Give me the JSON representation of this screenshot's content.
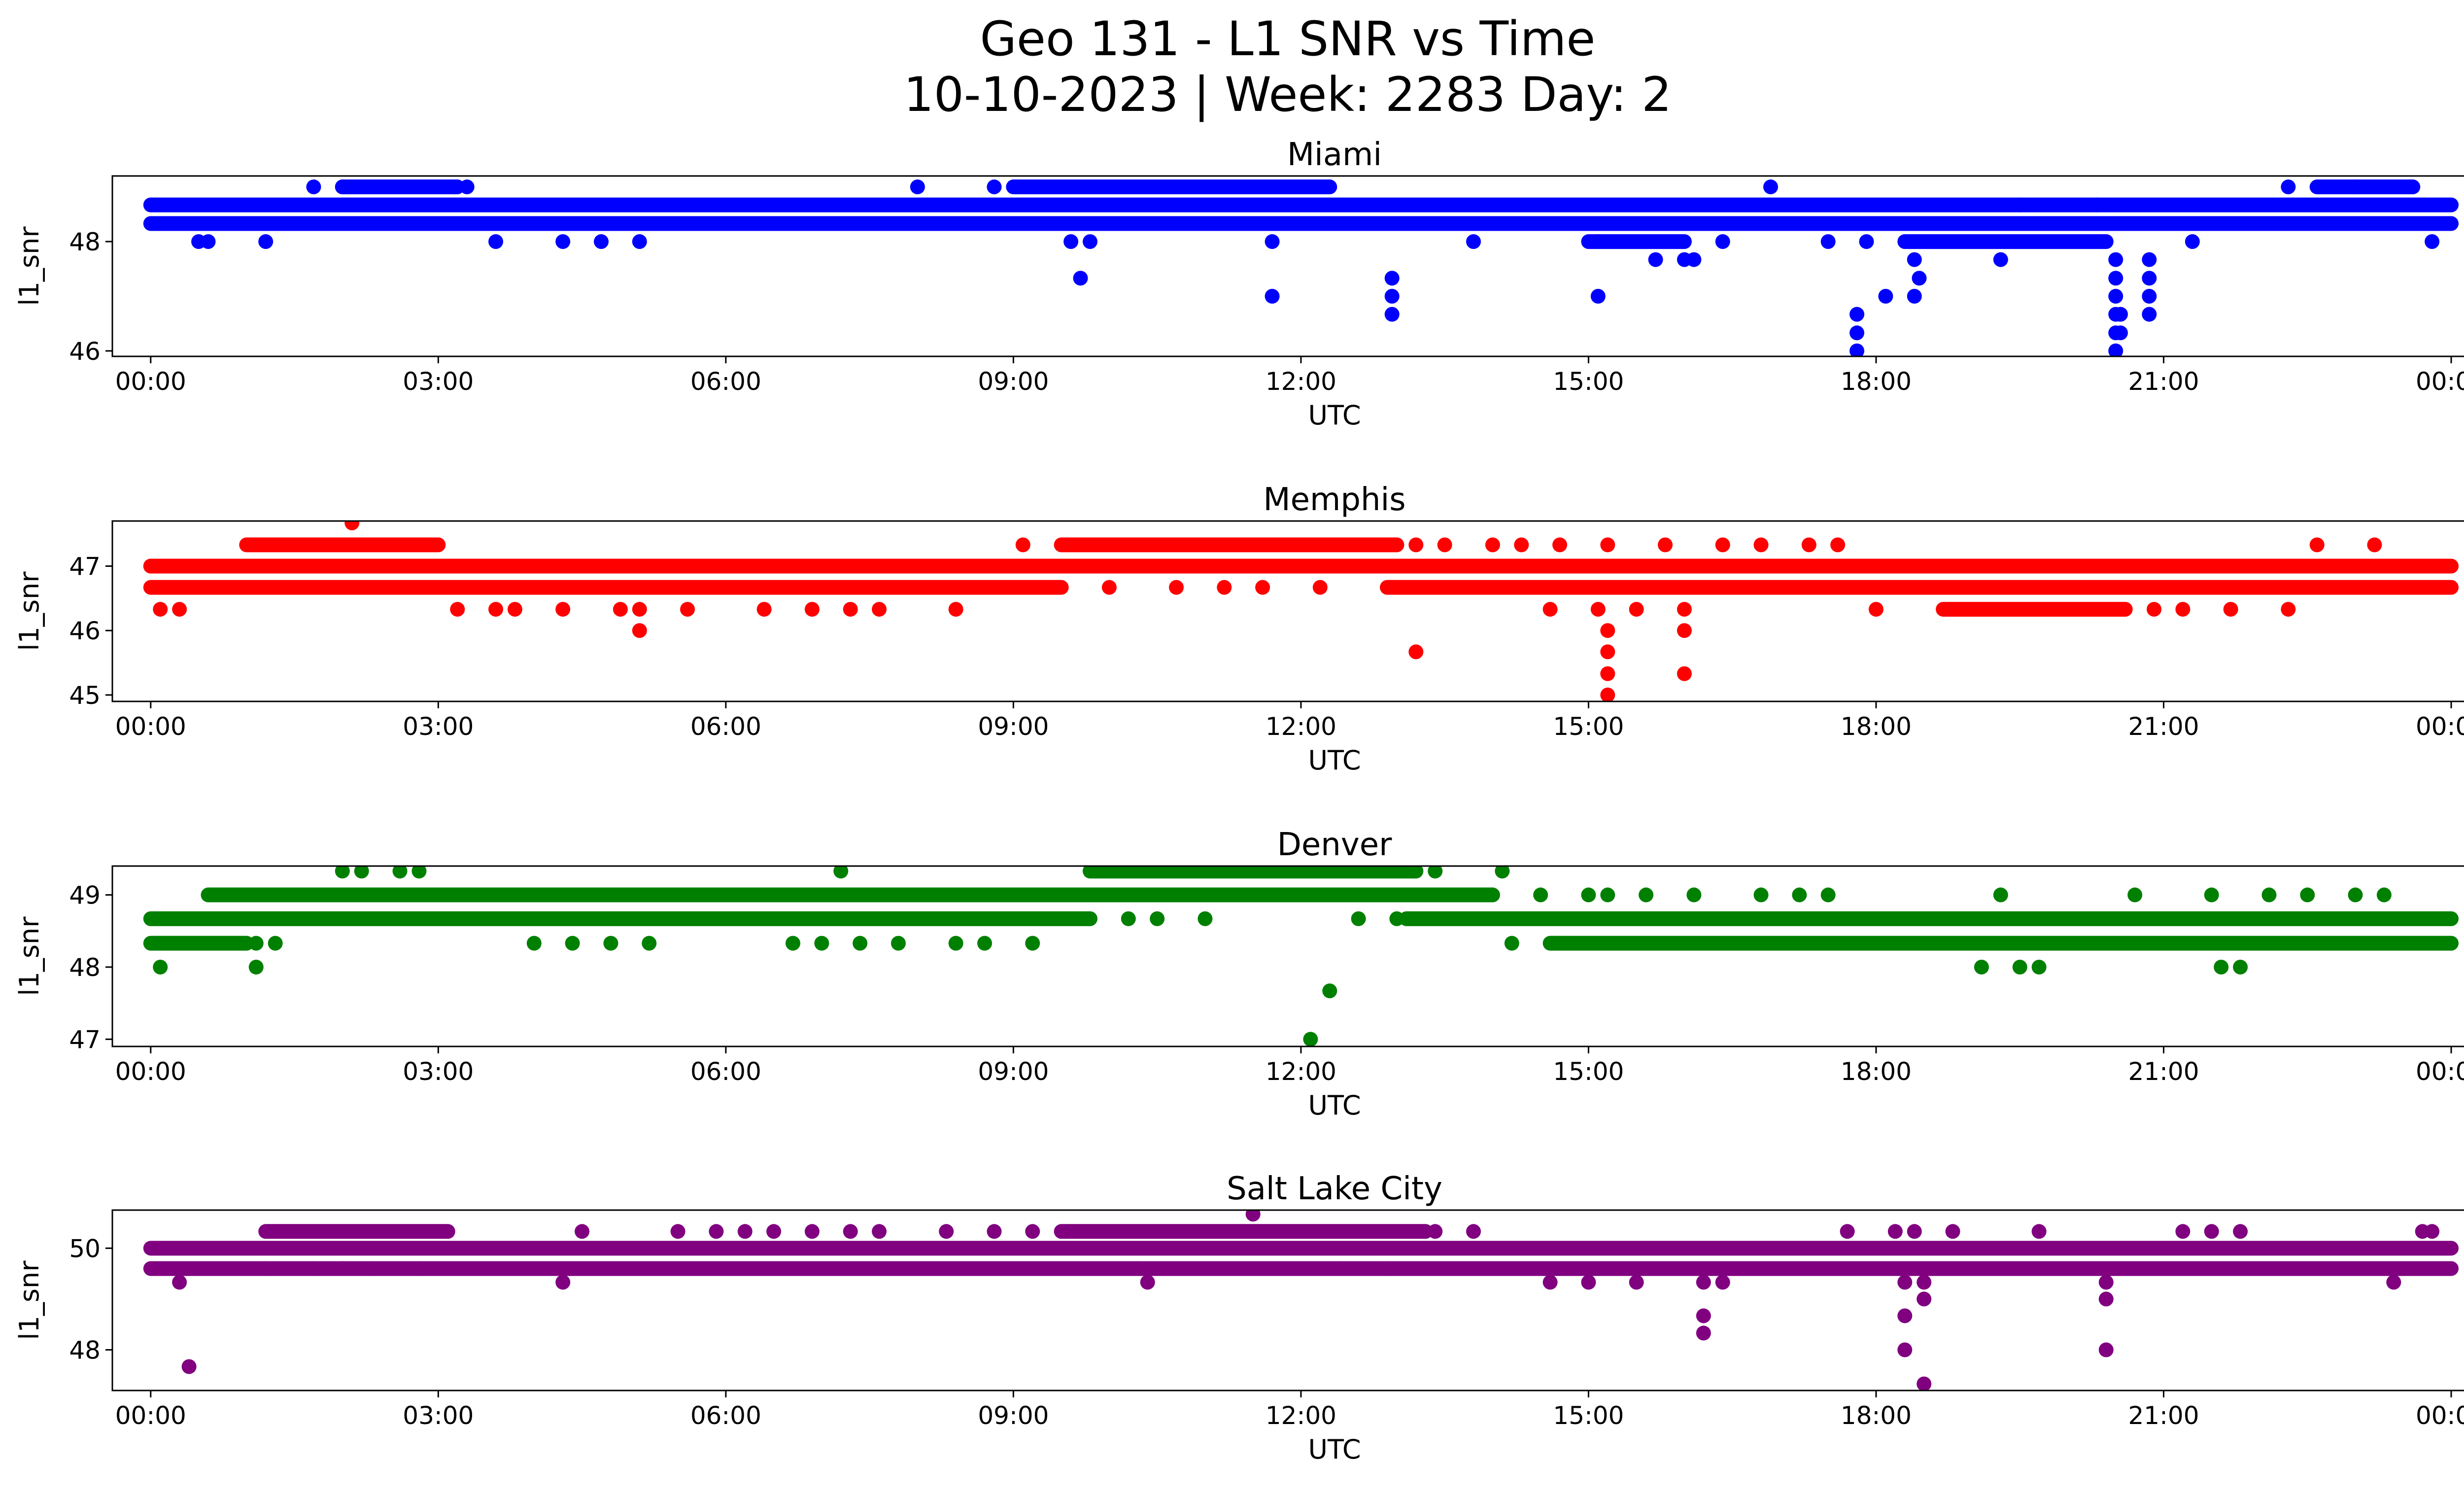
{
  "figure": {
    "title_line1": "Geo 131 - L1 SNR vs Time",
    "title_line2": "10-10-2023 | Week: 2283 Day: 2"
  },
  "chart_data": [
    {
      "type": "scatter",
      "title": "Miami",
      "xlabel": "UTC",
      "ylabel": "l1_snr",
      "color": "#0000ff",
      "x_unit": "hours UTC",
      "xlim": [
        -0.4,
        25.1
      ],
      "ylim": [
        45.9,
        49.2
      ],
      "xticks": [
        "00:00",
        "03:00",
        "06:00",
        "09:00",
        "12:00",
        "15:00",
        "18:00",
        "21:00",
        "00:00"
      ],
      "yticks": [
        46,
        48
      ],
      "bands": [
        {
          "y": 48.67,
          "from": 0.0,
          "to": 24.0
        },
        {
          "y": 48.33,
          "from": 0.0,
          "to": 15.8
        },
        {
          "y": 48.33,
          "from": 15.8,
          "to": 24.0
        },
        {
          "y": 49.0,
          "from": 2.0,
          "to": 3.2
        },
        {
          "y": 49.0,
          "from": 9.0,
          "to": 12.3
        },
        {
          "y": 49.0,
          "from": 22.6,
          "to": 23.6
        },
        {
          "y": 48.0,
          "from": 15.0,
          "to": 16.0
        },
        {
          "y": 48.0,
          "from": 18.3,
          "to": 20.4
        }
      ],
      "points": [
        [
          1.7,
          49.0
        ],
        [
          2.0,
          49.0
        ],
        [
          3.3,
          49.0
        ],
        [
          8.0,
          49.0
        ],
        [
          8.8,
          49.0
        ],
        [
          16.9,
          49.0
        ],
        [
          22.3,
          49.0
        ],
        [
          23.0,
          49.0
        ],
        [
          0.05,
          48.33
        ],
        [
          0.5,
          48.0
        ],
        [
          0.6,
          48.0
        ],
        [
          1.2,
          48.0
        ],
        [
          3.6,
          48.0
        ],
        [
          4.3,
          48.0
        ],
        [
          4.7,
          48.0
        ],
        [
          5.1,
          48.0
        ],
        [
          9.6,
          48.0
        ],
        [
          9.8,
          48.0
        ],
        [
          11.7,
          48.0
        ],
        [
          13.8,
          48.0
        ],
        [
          15.1,
          48.0
        ],
        [
          16.4,
          48.0
        ],
        [
          17.5,
          48.0
        ],
        [
          17.9,
          48.0
        ],
        [
          21.3,
          48.0
        ],
        [
          23.8,
          48.0
        ],
        [
          9.7,
          47.33
        ],
        [
          11.7,
          47.0
        ],
        [
          12.95,
          47.33
        ],
        [
          12.95,
          47.0
        ],
        [
          12.95,
          46.67
        ],
        [
          15.1,
          47.0
        ],
        [
          15.7,
          47.67
        ],
        [
          16.0,
          47.67
        ],
        [
          16.1,
          47.67
        ],
        [
          19.3,
          47.67
        ],
        [
          17.8,
          46.67
        ],
        [
          17.8,
          46.33
        ],
        [
          17.8,
          46.0
        ],
        [
          18.1,
          47.0
        ],
        [
          18.4,
          47.67
        ],
        [
          18.45,
          47.33
        ],
        [
          18.4,
          47.0
        ],
        [
          20.5,
          47.67
        ],
        [
          20.5,
          47.33
        ],
        [
          20.5,
          47.0
        ],
        [
          20.5,
          46.67
        ],
        [
          20.5,
          46.33
        ],
        [
          20.5,
          46.0
        ],
        [
          20.55,
          46.67
        ],
        [
          20.55,
          46.33
        ],
        [
          20.85,
          47.67
        ],
        [
          20.85,
          47.33
        ],
        [
          20.85,
          47.0
        ],
        [
          20.85,
          46.67
        ],
        [
          10.3,
          48.33
        ],
        [
          9.5,
          48.33
        ],
        [
          19.5,
          48.67
        ],
        [
          20.3,
          48.67
        ]
      ]
    },
    {
      "type": "scatter",
      "title": "Memphis",
      "xlabel": "UTC",
      "ylabel": "l1_snr",
      "color": "#ff0000",
      "x_unit": "hours UTC",
      "xlim": [
        -0.4,
        25.1
      ],
      "ylim": [
        44.9,
        47.7
      ],
      "xticks": [
        "00:00",
        "03:00",
        "06:00",
        "09:00",
        "12:00",
        "15:00",
        "18:00",
        "21:00",
        "00:00"
      ],
      "yticks": [
        45,
        46,
        47
      ],
      "bands": [
        {
          "y": 47.0,
          "from": 0.0,
          "to": 24.0
        },
        {
          "y": 46.67,
          "from": 0.0,
          "to": 9.5
        },
        {
          "y": 46.67,
          "from": 12.9,
          "to": 24.0
        },
        {
          "y": 46.33,
          "from": 18.7,
          "to": 20.6
        },
        {
          "y": 47.33,
          "from": 1.0,
          "to": 3.0
        },
        {
          "y": 47.33,
          "from": 9.5,
          "to": 13.0
        }
      ],
      "points": [
        [
          2.1,
          47.67
        ],
        [
          0.0,
          47.0
        ],
        [
          0.1,
          46.33
        ],
        [
          0.3,
          46.33
        ],
        [
          3.2,
          46.33
        ],
        [
          3.6,
          46.33
        ],
        [
          3.8,
          46.33
        ],
        [
          4.3,
          46.33
        ],
        [
          4.9,
          46.33
        ],
        [
          5.1,
          46.33
        ],
        [
          5.6,
          46.33
        ],
        [
          6.4,
          46.33
        ],
        [
          6.9,
          46.33
        ],
        [
          7.3,
          46.33
        ],
        [
          7.6,
          46.33
        ],
        [
          8.4,
          46.33
        ],
        [
          5.1,
          46.0
        ],
        [
          9.1,
          47.33
        ],
        [
          13.2,
          47.33
        ],
        [
          13.5,
          47.33
        ],
        [
          14.0,
          47.33
        ],
        [
          14.3,
          47.33
        ],
        [
          14.7,
          47.33
        ],
        [
          15.2,
          47.33
        ],
        [
          15.8,
          47.33
        ],
        [
          16.4,
          47.33
        ],
        [
          16.8,
          47.33
        ],
        [
          17.3,
          47.33
        ],
        [
          17.6,
          47.33
        ],
        [
          22.6,
          47.33
        ],
        [
          23.2,
          47.33
        ],
        [
          10.0,
          46.67
        ],
        [
          10.7,
          46.67
        ],
        [
          11.2,
          46.67
        ],
        [
          11.6,
          46.67
        ],
        [
          12.2,
          46.67
        ],
        [
          13.2,
          45.67
        ],
        [
          14.6,
          46.33
        ],
        [
          15.1,
          46.33
        ],
        [
          15.5,
          46.33
        ],
        [
          16.0,
          46.33
        ],
        [
          18.0,
          46.33
        ],
        [
          15.2,
          46.0
        ],
        [
          15.2,
          45.67
        ],
        [
          15.2,
          45.33
        ],
        [
          15.2,
          45.0
        ],
        [
          16.0,
          46.0
        ],
        [
          16.0,
          45.33
        ],
        [
          20.9,
          46.33
        ],
        [
          21.2,
          46.33
        ],
        [
          21.7,
          46.33
        ],
        [
          22.3,
          46.33
        ],
        [
          19.4,
          47.0
        ],
        [
          20.0,
          47.0
        ]
      ]
    },
    {
      "type": "scatter",
      "title": "Denver",
      "xlabel": "UTC",
      "ylabel": "l1_snr",
      "color": "#008000",
      "x_unit": "hours UTC",
      "xlim": [
        -0.4,
        25.1
      ],
      "ylim": [
        46.9,
        49.4
      ],
      "xticks": [
        "00:00",
        "03:00",
        "06:00",
        "09:00",
        "12:00",
        "15:00",
        "18:00",
        "21:00",
        "00:00"
      ],
      "yticks": [
        47,
        48,
        49
      ],
      "bands": [
        {
          "y": 48.67,
          "from": 0.0,
          "to": 9.8
        },
        {
          "y": 48.67,
          "from": 13.1,
          "to": 24.0
        },
        {
          "y": 48.33,
          "from": 0.0,
          "to": 1.0
        },
        {
          "y": 48.33,
          "from": 14.6,
          "to": 24.0
        },
        {
          "y": 49.0,
          "from": 0.6,
          "to": 14.0
        },
        {
          "y": 49.33,
          "from": 9.8,
          "to": 13.2
        }
      ],
      "points": [
        [
          0.1,
          48.0
        ],
        [
          1.1,
          48.0
        ],
        [
          1.1,
          48.33
        ],
        [
          1.3,
          48.33
        ],
        [
          2.0,
          49.33
        ],
        [
          2.2,
          49.33
        ],
        [
          2.6,
          49.33
        ],
        [
          2.8,
          49.33
        ],
        [
          7.2,
          49.33
        ],
        [
          4.0,
          48.33
        ],
        [
          4.4,
          48.33
        ],
        [
          4.8,
          48.33
        ],
        [
          5.2,
          48.33
        ],
        [
          6.7,
          48.33
        ],
        [
          7.0,
          48.33
        ],
        [
          7.4,
          48.33
        ],
        [
          7.8,
          48.33
        ],
        [
          8.4,
          48.33
        ],
        [
          8.7,
          48.33
        ],
        [
          9.2,
          48.33
        ],
        [
          10.2,
          48.67
        ],
        [
          10.5,
          48.67
        ],
        [
          11.0,
          48.67
        ],
        [
          12.1,
          47.0
        ],
        [
          12.3,
          47.67
        ],
        [
          12.6,
          48.67
        ],
        [
          13.0,
          48.67
        ],
        [
          13.4,
          49.33
        ],
        [
          14.1,
          49.33
        ],
        [
          14.2,
          48.33
        ],
        [
          14.5,
          49.0
        ],
        [
          15.0,
          49.0
        ],
        [
          15.2,
          49.0
        ],
        [
          15.6,
          49.0
        ],
        [
          16.1,
          49.0
        ],
        [
          16.8,
          49.0
        ],
        [
          17.2,
          49.0
        ],
        [
          17.5,
          49.0
        ],
        [
          19.1,
          48.0
        ],
        [
          19.5,
          48.0
        ],
        [
          19.7,
          48.0
        ],
        [
          21.6,
          48.0
        ],
        [
          21.8,
          48.0
        ],
        [
          19.3,
          49.0
        ],
        [
          20.7,
          49.0
        ],
        [
          21.5,
          49.0
        ],
        [
          22.1,
          49.0
        ],
        [
          22.5,
          49.0
        ],
        [
          23.0,
          49.0
        ],
        [
          23.3,
          49.0
        ]
      ]
    },
    {
      "type": "scatter",
      "title": "Salt Lake City",
      "xlabel": "UTC",
      "ylabel": "l1_snr",
      "color": "#800080",
      "x_unit": "hours UTC",
      "xlim": [
        -0.4,
        25.1
      ],
      "ylim": [
        47.2,
        50.75
      ],
      "xticks": [
        "00:00",
        "03:00",
        "06:00",
        "09:00",
        "12:00",
        "15:00",
        "18:00",
        "21:00",
        "00:00"
      ],
      "yticks": [
        48,
        50
      ],
      "bands": [
        {
          "y": 50.0,
          "from": 0.0,
          "to": 24.0
        },
        {
          "y": 49.6,
          "from": 0.0,
          "to": 24.0
        },
        {
          "y": 50.33,
          "from": 1.2,
          "to": 3.1
        },
        {
          "y": 50.33,
          "from": 9.5,
          "to": 13.3
        }
      ],
      "points": [
        [
          0.3,
          49.33
        ],
        [
          0.4,
          47.67
        ],
        [
          1.2,
          49.6
        ],
        [
          1.7,
          49.6
        ],
        [
          2.0,
          49.6
        ],
        [
          2.3,
          49.6
        ],
        [
          2.6,
          49.6
        ],
        [
          2.8,
          49.6
        ],
        [
          4.3,
          49.33
        ],
        [
          4.5,
          50.33
        ],
        [
          5.5,
          50.33
        ],
        [
          5.9,
          50.33
        ],
        [
          6.2,
          50.33
        ],
        [
          6.5,
          50.33
        ],
        [
          6.9,
          50.33
        ],
        [
          7.3,
          50.33
        ],
        [
          7.6,
          50.33
        ],
        [
          8.3,
          50.33
        ],
        [
          8.8,
          50.33
        ],
        [
          9.2,
          50.33
        ],
        [
          10.3,
          49.6
        ],
        [
          10.4,
          49.33
        ],
        [
          11.5,
          50.67
        ],
        [
          12.4,
          49.6
        ],
        [
          12.9,
          49.6
        ],
        [
          13.4,
          50.33
        ],
        [
          13.8,
          50.33
        ],
        [
          14.6,
          49.33
        ],
        [
          15.0,
          49.33
        ],
        [
          15.5,
          49.33
        ],
        [
          16.2,
          49.33
        ],
        [
          16.2,
          48.67
        ],
        [
          16.2,
          48.33
        ],
        [
          16.4,
          49.33
        ],
        [
          17.7,
          50.33
        ],
        [
          18.2,
          50.33
        ],
        [
          18.4,
          50.33
        ],
        [
          18.8,
          50.33
        ],
        [
          18.3,
          49.33
        ],
        [
          18.3,
          48.67
        ],
        [
          18.3,
          48.0
        ],
        [
          18.5,
          49.33
        ],
        [
          18.5,
          49.0
        ],
        [
          18.5,
          47.33
        ],
        [
          19.7,
          50.33
        ],
        [
          20.4,
          49.33
        ],
        [
          20.4,
          49.0
        ],
        [
          20.4,
          48.0
        ],
        [
          21.2,
          50.33
        ],
        [
          21.5,
          50.33
        ],
        [
          21.8,
          50.33
        ],
        [
          23.4,
          49.33
        ],
        [
          23.7,
          50.33
        ],
        [
          23.8,
          50.33
        ]
      ]
    }
  ]
}
